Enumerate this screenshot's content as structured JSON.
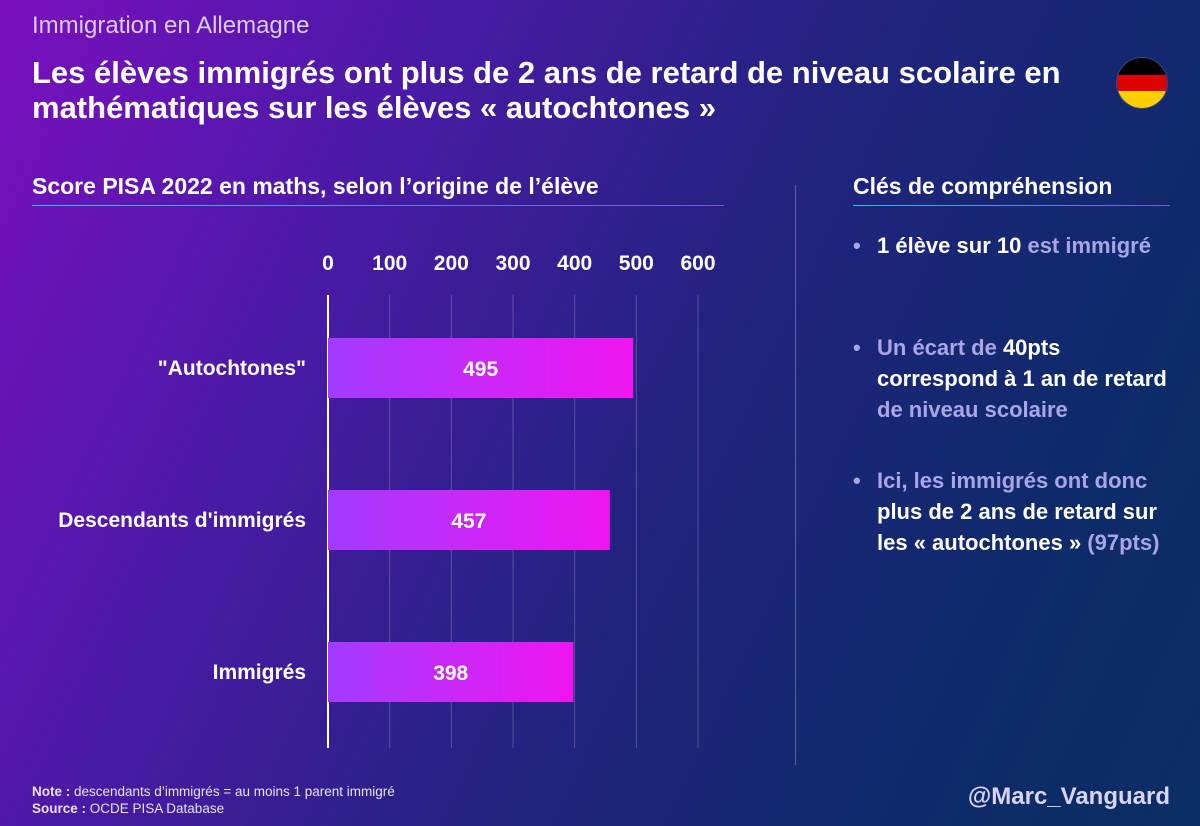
{
  "supertitle": "Immigration en Allemagne",
  "title": "Les élèves immigrés ont plus de 2 ans de retard de niveau scolaire en mathématiques sur les élèves « autochtones »",
  "flag": {
    "name": "germany-flag",
    "colors": [
      "#000000",
      "#dd0000",
      "#ffce00"
    ]
  },
  "chart_heading": "Score PISA 2022 en maths, selon l’origine de l’élève",
  "chart_data": {
    "type": "bar",
    "orientation": "horizontal",
    "categories": [
      "\"Autochtones\"",
      "Descendants d'immigrés",
      "Immigrés"
    ],
    "values": [
      495,
      457,
      398
    ],
    "data_labels": [
      "495",
      "457",
      "398"
    ],
    "xlim": [
      0,
      600
    ],
    "xticks": [
      0,
      100,
      200,
      300,
      400,
      500,
      600
    ],
    "xtick_labels": [
      "0",
      "100",
      "200",
      "300",
      "400",
      "500",
      "600"
    ],
    "axis_position": "top",
    "grid": true,
    "bar_gradient": [
      "#a23bff",
      "#f015f0"
    ]
  },
  "keys_heading": "Clés de compréhension",
  "bullets": [
    [
      {
        "t": "1 élève sur 10 ",
        "c": "w"
      },
      {
        "t": "est",
        "c": "l"
      },
      {
        "t": " immigré",
        "c": "l"
      }
    ],
    [
      {
        "t": "Un écart de ",
        "c": "l"
      },
      {
        "t": "40pts",
        "c": "w"
      },
      {
        "t": " correspond à 1 an de retard",
        "c": "w"
      },
      {
        "t": " de niveau scolaire",
        "c": "l"
      }
    ],
    [
      {
        "t": "Ici, les immigrés ont donc",
        "c": "l"
      },
      {
        "t": " plus de 2 ans de retard sur les « autochtones »",
        "c": "w"
      },
      {
        "t": " (97pts)",
        "c": "l"
      }
    ]
  ],
  "note": {
    "label": "Note :",
    "text": " descendants d’immigrés = au moins 1 parent immigré"
  },
  "source": {
    "label": "Source :",
    "text": " OCDE PISA Database"
  },
  "handle": "@Marc_Vanguard"
}
